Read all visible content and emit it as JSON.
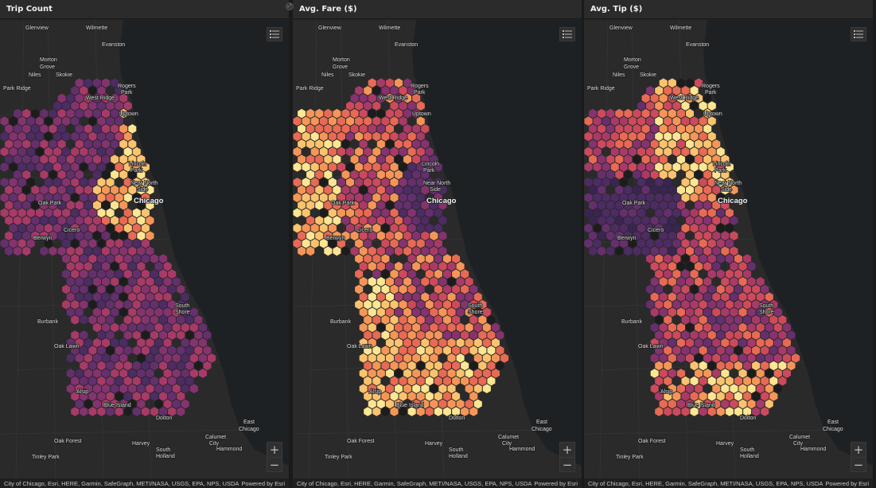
{
  "panels": [
    {
      "title": "Trip Count",
      "metric": "trip_count",
      "palette": "count"
    },
    {
      "title": "Avg. Fare ($)",
      "metric": "avg_fare",
      "palette": "fare"
    },
    {
      "title": "Avg. Tip ($)",
      "metric": "avg_tip",
      "palette": "tip"
    }
  ],
  "colors": {
    "water": "#1e2124",
    "land": "#2a2a2a",
    "hex_ramp": [
      "#3a2452",
      "#4d2b63",
      "#652f6d",
      "#84336f",
      "#a83a68",
      "#cc4a5c",
      "#e86a54",
      "#f59658",
      "#fbc36e",
      "#fde592"
    ]
  },
  "place_labels": [
    {
      "name": "Glenview",
      "big": false
    },
    {
      "name": "Wilmette",
      "big": false
    },
    {
      "name": "Evanston",
      "big": false
    },
    {
      "name": "Morton",
      "big": false
    },
    {
      "name": "Grove",
      "big": false
    },
    {
      "name": "Niles",
      "big": false
    },
    {
      "name": "Skokie",
      "big": false
    },
    {
      "name": "Rogers",
      "big": false
    },
    {
      "name": "Park",
      "big": false
    },
    {
      "name": "West Ridge",
      "big": false
    },
    {
      "name": "Park Ridge",
      "big": false
    },
    {
      "name": "Uptown",
      "big": false
    },
    {
      "name": "Lincoln",
      "big": false
    },
    {
      "name": "Park",
      "big": false
    },
    {
      "name": "Near North",
      "big": false
    },
    {
      "name": "Side",
      "big": false
    },
    {
      "name": "Chicago",
      "big": true
    },
    {
      "name": "Oak Park",
      "big": false
    },
    {
      "name": "Cicero",
      "big": false
    },
    {
      "name": "Berwyn",
      "big": false
    },
    {
      "name": "South",
      "big": false
    },
    {
      "name": "Shore",
      "big": false
    },
    {
      "name": "Burbank",
      "big": false
    },
    {
      "name": "Oak Lawn",
      "big": false
    },
    {
      "name": "Alsip",
      "big": false
    },
    {
      "name": "Blue Island",
      "big": false
    },
    {
      "name": "Dolton",
      "big": false
    },
    {
      "name": "East",
      "big": false
    },
    {
      "name": "Chicago",
      "big": false
    },
    {
      "name": "Oak Forest",
      "big": false
    },
    {
      "name": "Harvey",
      "big": false
    },
    {
      "name": "South",
      "big": false
    },
    {
      "name": "Holland",
      "big": false
    },
    {
      "name": "Calumet",
      "big": false
    },
    {
      "name": "City",
      "big": false
    },
    {
      "name": "Hammond",
      "big": false
    },
    {
      "name": "Tinley Park",
      "big": false
    }
  ],
  "attribution": "City of Chicago, Esri, HERE, Garmin, SafeGraph, METI/NASA, USGS, EPA, NPS, USDA",
  "powered_by": "Powered by Esri",
  "icons": {
    "legend": "legend-list-icon",
    "zoom_in": "plus-icon",
    "zoom_out": "minus-icon",
    "expand": "expand-icon"
  },
  "zoom_in_label": "+",
  "zoom_out_label": "−"
}
